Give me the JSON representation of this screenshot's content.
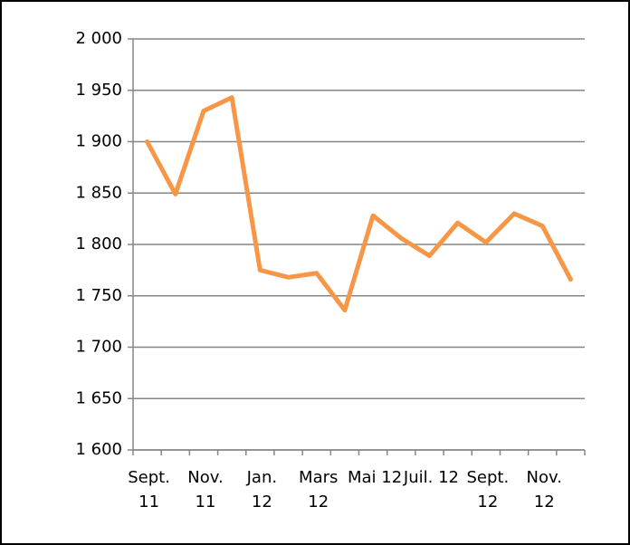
{
  "chart_data": {
    "type": "line",
    "categories": [
      "Sept. 11",
      null,
      "Nov. 11",
      null,
      "Jan. 12",
      null,
      "Mars 12",
      null,
      "Mai 12",
      null,
      "Juil. 12",
      null,
      "Sept. 12",
      null,
      "Nov. 12",
      null
    ],
    "series": [
      {
        "color": "#f79646",
        "values": [
          1900,
          1849,
          1930,
          1943,
          1775,
          1768,
          1772,
          1736,
          1828,
          1806,
          1789,
          1821,
          1802,
          1830,
          1818,
          1766
        ]
      }
    ],
    "ylim": [
      1600,
      2000
    ],
    "yticks": [
      {
        "value": 1600,
        "label": "1 600"
      },
      {
        "value": 1650,
        "label": "1 650"
      },
      {
        "value": 1700,
        "label": "1 700"
      },
      {
        "value": 1750,
        "label": "1 750"
      },
      {
        "value": 1800,
        "label": "1 800"
      },
      {
        "value": 1850,
        "label": "1 850"
      },
      {
        "value": 1900,
        "label": "1 900"
      },
      {
        "value": 1950,
        "label": "1 950"
      },
      {
        "value": 2000,
        "label": "2 000"
      }
    ],
    "grid": true
  }
}
